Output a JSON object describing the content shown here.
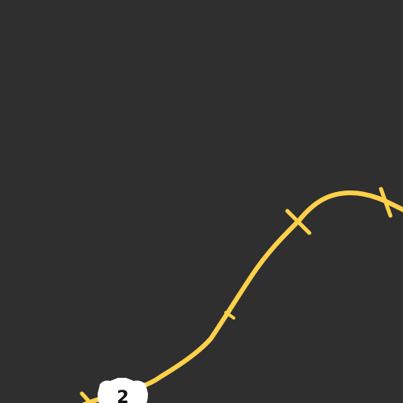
{
  "map": {
    "background_color": "#2f2f2f",
    "road_color": "#ffd04a",
    "road": {
      "type": "highway",
      "shield_number": "2",
      "shield_color": "#ffffff"
    }
  }
}
